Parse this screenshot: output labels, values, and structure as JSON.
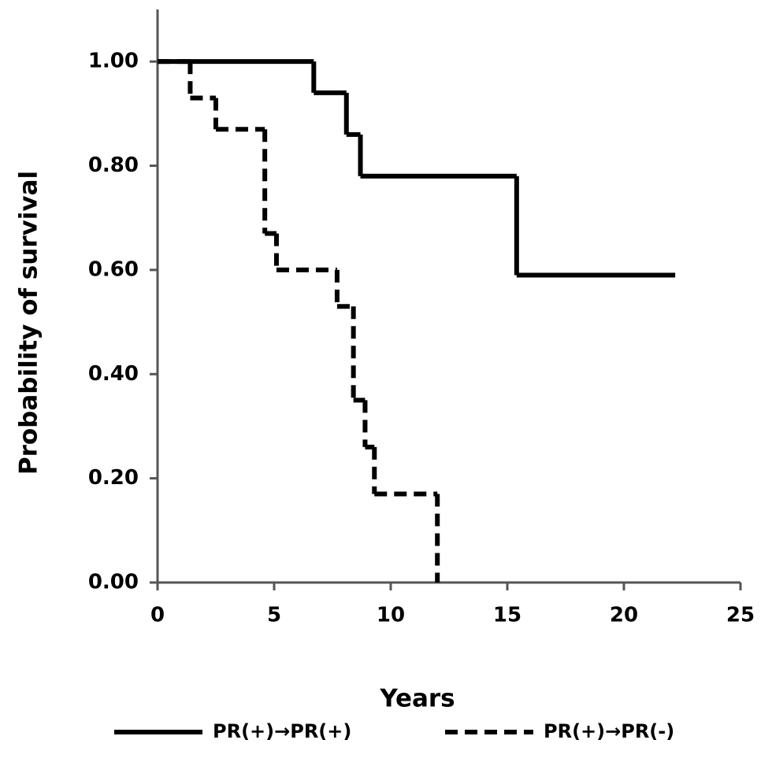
{
  "chart_data": {
    "type": "step",
    "xlabel": "Years",
    "ylabel": "Probability of survival",
    "xlim": [
      0,
      25
    ],
    "xticks": [
      0,
      5,
      10,
      15,
      20,
      25
    ],
    "ylim": [
      0,
      1.1
    ],
    "yticks": [
      {
        "value": 0,
        "label": "0.00"
      },
      {
        "value": 0.2,
        "label": "0.20"
      },
      {
        "value": 0.4,
        "label": "0.40"
      },
      {
        "value": 0.6,
        "label": "0.60"
      },
      {
        "value": 0.8,
        "label": "0.80"
      },
      {
        "value": 1,
        "label": "1.00"
      }
    ],
    "series": [
      {
        "name": "PR(+)→PR(+)",
        "color": "#000000",
        "dash": false,
        "x": [
          0,
          6.7,
          8.1,
          8.7,
          15.4,
          22.2
        ],
        "values": [
          1.0,
          0.94,
          0.86,
          0.78,
          0.59,
          0.59
        ]
      },
      {
        "name": "PR(+)→PR(-)",
        "color": "#000000",
        "dash": true,
        "x": [
          0,
          1.4,
          2.5,
          4.6,
          5.1,
          7.7,
          8.4,
          8.9,
          9.3,
          12.0
        ],
        "values": [
          1.0,
          0.93,
          0.87,
          0.67,
          0.6,
          0.53,
          0.35,
          0.26,
          0.17,
          0.0
        ]
      }
    ]
  }
}
